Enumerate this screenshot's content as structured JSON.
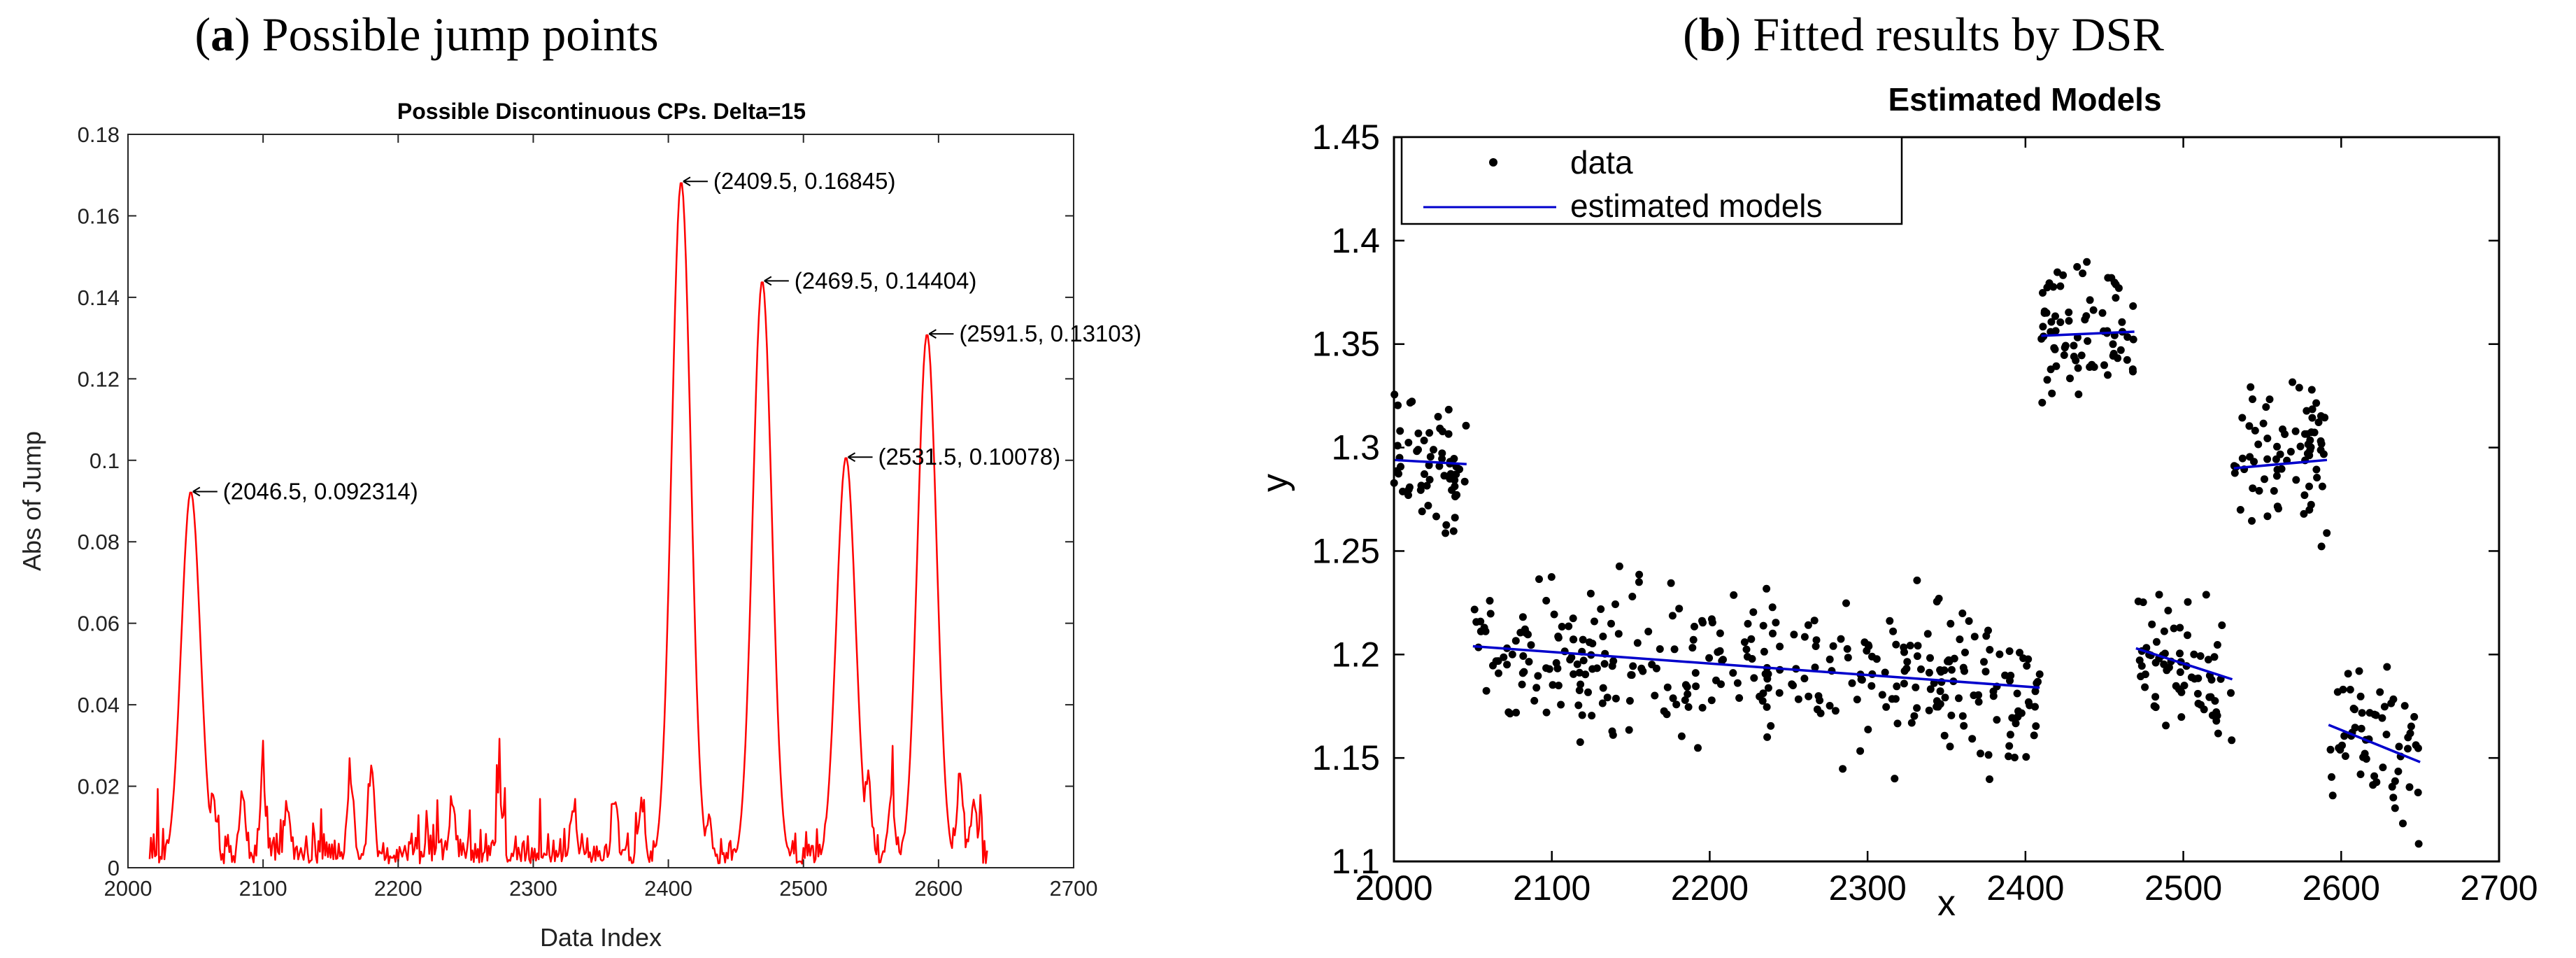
{
  "captions": {
    "a_letter": "a",
    "a_text": "Possible jump points",
    "b_letter": "b",
    "b_text": "Fitted results by DSR"
  },
  "chart_data": [
    {
      "type": "line",
      "title": "Possible Discontinuous CPs. Delta=15",
      "xlabel": "Data Index",
      "ylabel": "Abs of Jump",
      "xlim": [
        2000,
        2700
      ],
      "ylim": [
        0,
        0.18
      ],
      "xticks": [
        2000,
        2100,
        2200,
        2300,
        2400,
        2500,
        2600,
        2700
      ],
      "yticks": [
        0,
        0.02,
        0.04,
        0.06,
        0.08,
        0.1,
        0.12,
        0.14,
        0.16,
        0.18
      ],
      "ytick_labels": [
        "0",
        "0.02",
        "0.04",
        "0.06",
        "0.08",
        "0.1",
        "0.12",
        "0.14",
        "0.16",
        "0.18"
      ],
      "color": "#ff0000",
      "x_start": 2016,
      "x_end": 2636,
      "peaks": [
        {
          "x": 2046.5,
          "y": 0.092314,
          "label": "(2046.5, 0.092314)"
        },
        {
          "x": 2409.5,
          "y": 0.16845,
          "label": "(2409.5, 0.16845)"
        },
        {
          "x": 2469.5,
          "y": 0.14404,
          "label": "(2469.5, 0.14404)"
        },
        {
          "x": 2531.5,
          "y": 0.10078,
          "label": "(2531.5, 0.10078)"
        },
        {
          "x": 2591.5,
          "y": 0.13103,
          "label": "(2591.5, 0.13103)"
        }
      ]
    },
    {
      "type": "scatter",
      "title": "Estimated Models",
      "xlabel": "x",
      "ylabel": "y",
      "xlim": [
        2000,
        2700
      ],
      "ylim": [
        1.1,
        1.45
      ],
      "xticks": [
        2000,
        2100,
        2200,
        2300,
        2400,
        2500,
        2600,
        2700
      ],
      "yticks": [
        1.1,
        1.15,
        1.2,
        1.25,
        1.3,
        1.35,
        1.4,
        1.45
      ],
      "ytick_labels": [
        "1.1",
        "1.15",
        "1.2",
        "1.25",
        "1.3",
        "1.35",
        "1.4",
        "1.45"
      ],
      "legend": [
        {
          "label": "data",
          "marker": "dot",
          "color": "#000000"
        },
        {
          "label": "estimated models",
          "marker": "line",
          "color": "#0000cc"
        }
      ],
      "legend_position": "top-left",
      "data_color": "#000000",
      "model_color": "#0000cc",
      "segments": [
        {
          "x0": 2000,
          "x1": 2046,
          "y0": 1.294,
          "y1": 1.292,
          "spread": 0.028,
          "count": 60
        },
        {
          "x0": 2050,
          "x1": 2409,
          "y0": 1.204,
          "y1": 1.184,
          "spread": 0.03,
          "count": 330
        },
        {
          "x0": 2410,
          "x1": 2469,
          "y0": 1.354,
          "y1": 1.356,
          "spread": 0.028,
          "count": 75
        },
        {
          "x0": 2470,
          "x1": 2531,
          "y0": 1.203,
          "y1": 1.188,
          "spread": 0.028,
          "count": 70
        },
        {
          "x0": 2532,
          "x1": 2591,
          "y0": 1.29,
          "y1": 1.294,
          "spread": 0.028,
          "count": 75
        },
        {
          "x0": 2592,
          "x1": 2650,
          "y0": 1.166,
          "y1": 1.148,
          "spread": 0.026,
          "count": 60
        }
      ]
    }
  ]
}
